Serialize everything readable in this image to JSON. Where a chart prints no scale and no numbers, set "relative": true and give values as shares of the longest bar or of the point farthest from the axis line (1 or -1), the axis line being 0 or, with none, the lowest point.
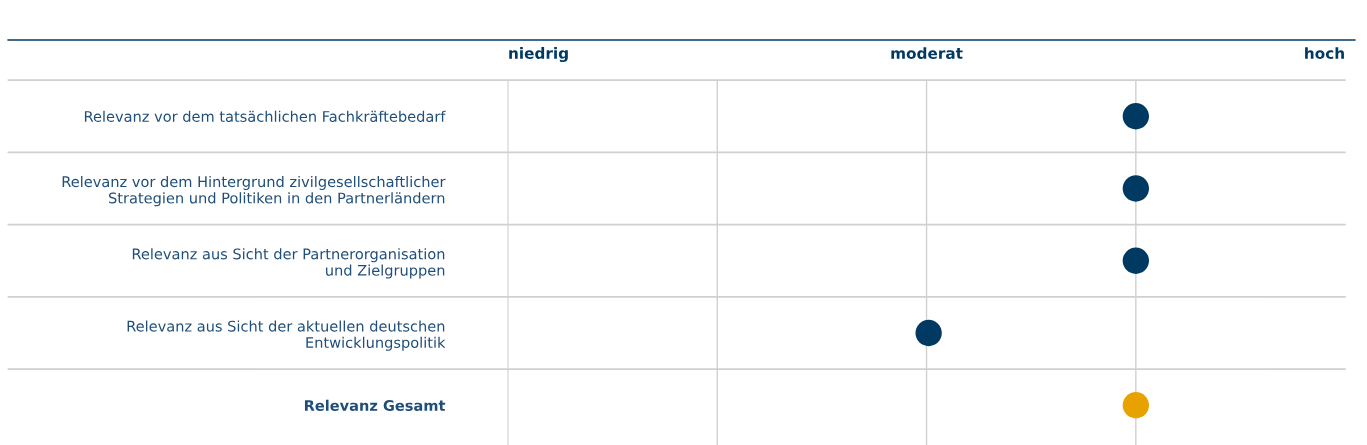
{
  "chart_data": {
    "type": "scatter",
    "orientation": "horizontal",
    "relative": true,
    "categories": [
      "Relevanz vor dem tatsächlichen Fachkräftebedarf",
      "Relevanz vor dem Hintergrund zivilgesellschaftlicher\nStrategien und Politiken in den Partnerländern",
      "Relevanz aus Sicht der Partnerorganisation\nund Zielgruppen",
      "Relevanz aus Sicht der aktuellen deutschen\nEntwicklungspolitik",
      "Relevanz Gesamt"
    ],
    "values": [
      1,
      1,
      1,
      0.67,
      1
    ],
    "colors": [
      "#003a63",
      "#003a63",
      "#003a63",
      "#003a63",
      "#e8a200"
    ],
    "annotations": [
      "niedrig",
      "moderat",
      "hoch"
    ],
    "grid": "x",
    "marker": "circle"
  }
}
